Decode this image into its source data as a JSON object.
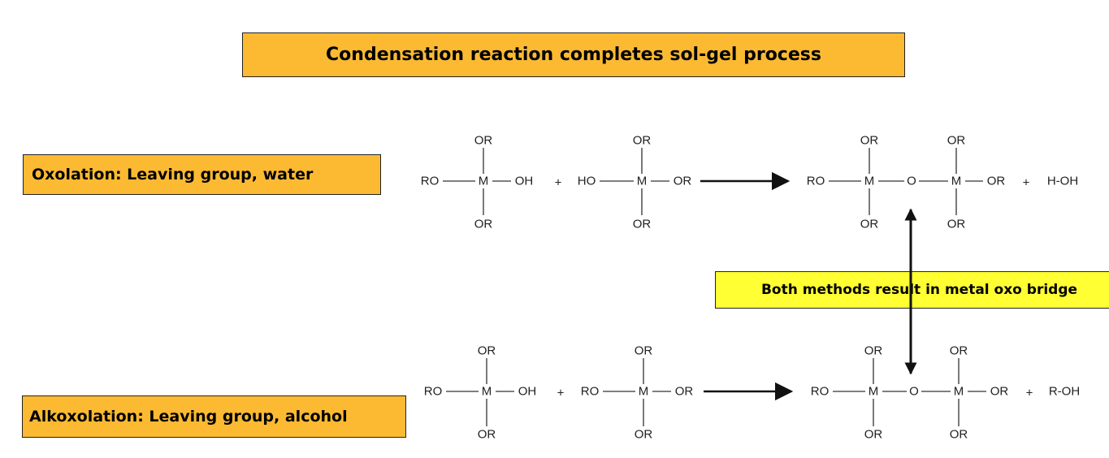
{
  "title": "Condensation reaction completes sol-gel process",
  "oxolation_label": "Oxolation: Leaving group, water",
  "alkoxolation_label": "Alkoxolation: Leaving group, alcohol",
  "bridge_label": "Both methods result in metal oxo bridge",
  "oxolation": {
    "reactant1": {
      "top": "OR",
      "left": "RO",
      "center": "M",
      "right": "OH",
      "bottom": "OR"
    },
    "plus1": "+",
    "reactant2": {
      "top": "OR",
      "left": "HO",
      "center": "M",
      "right": "OR",
      "bottom": "OR"
    },
    "product": {
      "left": "RO",
      "m1": "M",
      "m1_top": "OR",
      "m1_bottom": "OR",
      "bridge": "O",
      "m2": "M",
      "m2_top": "OR",
      "m2_bottom": "OR",
      "right": "OR"
    },
    "plus2": "+",
    "byproduct": "H-OH"
  },
  "alkoxolation": {
    "reactant1": {
      "top": "OR",
      "left": "RO",
      "center": "M",
      "right": "OH",
      "bottom": "OR"
    },
    "plus1": "+",
    "reactant2": {
      "top": "OR",
      "left": "RO",
      "center": "M",
      "right": "OR",
      "bottom": "OR"
    },
    "product": {
      "left": "RO",
      "m1": "M",
      "m1_top": "OR",
      "m1_bottom": "OR",
      "bridge": "O",
      "m2": "M",
      "m2_top": "OR",
      "m2_bottom": "OR",
      "right": "OR"
    },
    "plus2": "+",
    "byproduct": "R-OH"
  }
}
